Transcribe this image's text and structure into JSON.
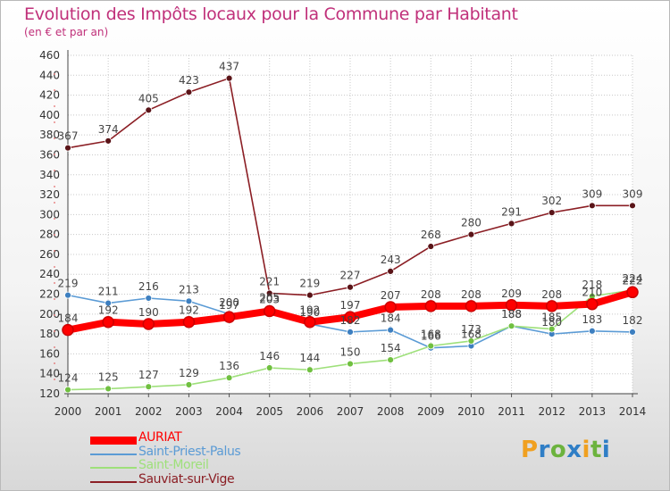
{
  "title": "Evolution des Impôts locaux pour la Commune par Habitant",
  "subtitle": "(en € et par an)",
  "logo": {
    "text": "Proxiti",
    "letters": [
      {
        "ch": "P",
        "color": "#f0a020"
      },
      {
        "ch": "r",
        "color": "#2f7ec6"
      },
      {
        "ch": "o",
        "color": "#6cb33e"
      },
      {
        "ch": "x",
        "color": "#2f7ec6"
      },
      {
        "ch": "i",
        "color": "#f0a020"
      },
      {
        "ch": "t",
        "color": "#6cb33e"
      },
      {
        "ch": "i",
        "color": "#2f7ec6"
      }
    ]
  },
  "chart_data": {
    "type": "line",
    "title": "Evolution des Impôts locaux pour la Commune par Habitant",
    "subtitle": "(en € et par an)",
    "xlabel": "",
    "ylabel": "",
    "ylim": [
      120,
      460
    ],
    "ytick_step": 20,
    "grid": true,
    "legend_position": "bottom-left",
    "categories": [
      "2000",
      "2001",
      "2002",
      "2003",
      "2004",
      "2005",
      "2006",
      "2007",
      "2008",
      "2009",
      "2010",
      "2011",
      "2012",
      "2013",
      "2014"
    ],
    "series": [
      {
        "name": "Sauviat-sur-Vige",
        "color": "#8b1e24",
        "marker": "#5a1418",
        "weight": "thin",
        "values": [
          367,
          374,
          405,
          423,
          437,
          221,
          219,
          227,
          243,
          268,
          280,
          291,
          302,
          309,
          309
        ],
        "labels": [
          "367",
          "374",
          "405",
          "423",
          "437",
          "221",
          "219",
          "227",
          "243",
          "268",
          "280",
          "291",
          "302",
          "309",
          "309"
        ]
      },
      {
        "name": "Saint-Priest-Palus",
        "color": "#5b9bd5",
        "marker": "#3d7fc0",
        "weight": "thin",
        "values": [
          219,
          211,
          216,
          213,
          200,
          205,
          190,
          182,
          184,
          166,
          168,
          188,
          180,
          183,
          182
        ],
        "labels": [
          "219",
          "211",
          "216",
          "213",
          "200",
          "205",
          "190",
          "182",
          "184",
          "166",
          "168",
          "188",
          "180",
          "183",
          "182"
        ]
      },
      {
        "name": "Saint-Moreil",
        "color": "#9ee07a",
        "marker": "#70c040",
        "weight": "thin",
        "values": [
          124,
          125,
          127,
          129,
          136,
          146,
          144,
          150,
          154,
          168,
          173,
          188,
          185,
          218,
          224
        ],
        "labels": [
          "124",
          "125",
          "127",
          "129",
          "136",
          "146",
          "144",
          "150",
          "154",
          "168",
          "173",
          "188",
          "185",
          "218",
          "224"
        ]
      },
      {
        "name": "AURIAT",
        "color": "#ff0000",
        "marker": "#cc0000",
        "weight": "thick",
        "values": [
          184,
          192,
          190,
          192,
          197,
          203,
          192,
          197,
          207,
          208,
          208,
          209,
          208,
          210,
          222
        ],
        "labels": [
          "184",
          "192",
          "190",
          "192",
          "197",
          "203",
          "192",
          "197",
          "207",
          "208",
          "208",
          "209",
          "208",
          "210",
          "222"
        ]
      }
    ],
    "legend": [
      {
        "name": "AURIAT",
        "color": "#ff0000",
        "weight": "thick"
      },
      {
        "name": "Saint-Priest-Palus",
        "color": "#5b9bd5",
        "weight": "thin"
      },
      {
        "name": "Saint-Moreil",
        "color": "#9ee07a",
        "weight": "thin"
      },
      {
        "name": "Sauviat-sur-Vige",
        "color": "#8b1e24",
        "weight": "thin"
      }
    ]
  }
}
